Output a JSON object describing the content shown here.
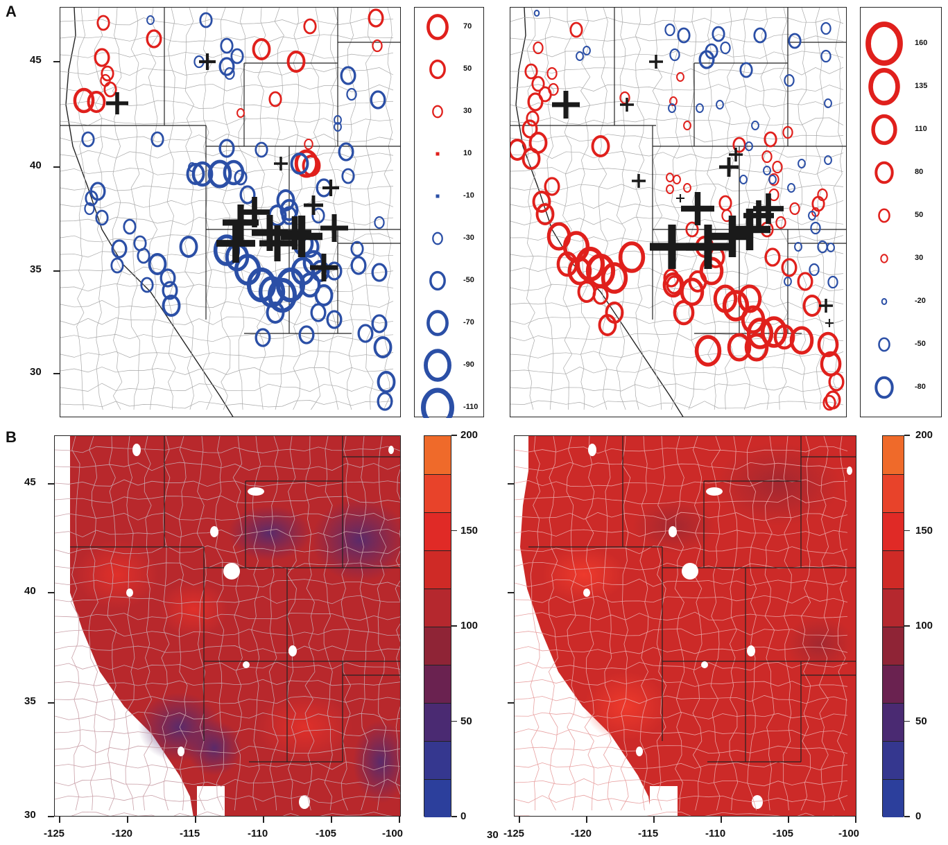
{
  "panels": {
    "a": "A",
    "b": "B"
  },
  "colors": {
    "red": "#e0201c",
    "blue": "#2b4fa6",
    "black": "#1a1a1a"
  },
  "map_a_yticks": [
    "45",
    "40",
    "35",
    "30"
  ],
  "map_b_yticks": [
    "45",
    "40",
    "35",
    "30"
  ],
  "map_b_right_ytick": "30",
  "xticks": [
    "-125",
    "-120",
    "-115",
    "-110",
    "-105",
    "-100"
  ],
  "legend_left": [
    {
      "label": "70",
      "color": "red"
    },
    {
      "label": "50",
      "color": "red"
    },
    {
      "label": "30",
      "color": "red"
    },
    {
      "label": "10",
      "color": "red"
    },
    {
      "label": "-10",
      "color": "blue"
    },
    {
      "label": "-30",
      "color": "blue"
    },
    {
      "label": "-50",
      "color": "blue"
    },
    {
      "label": "-70",
      "color": "blue"
    },
    {
      "label": "-90",
      "color": "blue"
    },
    {
      "label": "-110",
      "color": "blue"
    }
  ],
  "legend_right": [
    {
      "label": "160",
      "color": "red"
    },
    {
      "label": "135",
      "color": "red"
    },
    {
      "label": "110",
      "color": "red"
    },
    {
      "label": "80",
      "color": "red"
    },
    {
      "label": "50",
      "color": "red"
    },
    {
      "label": "30",
      "color": "red"
    },
    {
      "label": "-20",
      "color": "blue"
    },
    {
      "label": "-50",
      "color": "blue"
    },
    {
      "label": "-80",
      "color": "blue"
    }
  ],
  "colorbar": {
    "labels": [
      "200",
      "150",
      "100",
      "50",
      "0"
    ],
    "colors": [
      "#ef6a2a",
      "#e8432a",
      "#e02a26",
      "#cf2a26",
      "#b5282e",
      "#8f2436",
      "#6a2250",
      "#4a2a72",
      "#35378f",
      "#2c3f9c"
    ]
  },
  "chart_data": {
    "type": "map",
    "panels": [
      {
        "panel": "A",
        "position": "left",
        "symbols": "circles",
        "legend": [
          "70",
          "50",
          "30",
          "10",
          "-10",
          "-30",
          "-50",
          "-70",
          "-90",
          "-110"
        ]
      },
      {
        "panel": "A",
        "position": "right",
        "symbols": "circles",
        "legend": [
          "160",
          "135",
          "110",
          "80",
          "50",
          "30",
          "-20",
          "-50",
          "-80"
        ]
      },
      {
        "panel": "B",
        "position": "left",
        "fill": "heatmap",
        "colorbar": [
          "0",
          "50",
          "100",
          "150",
          "200"
        ]
      },
      {
        "panel": "B",
        "position": "right",
        "fill": "heatmap",
        "colorbar": [
          "0",
          "50",
          "100",
          "150",
          "200"
        ]
      }
    ],
    "xlim": [
      -125,
      -100
    ],
    "ylim": [
      30,
      47
    ]
  }
}
